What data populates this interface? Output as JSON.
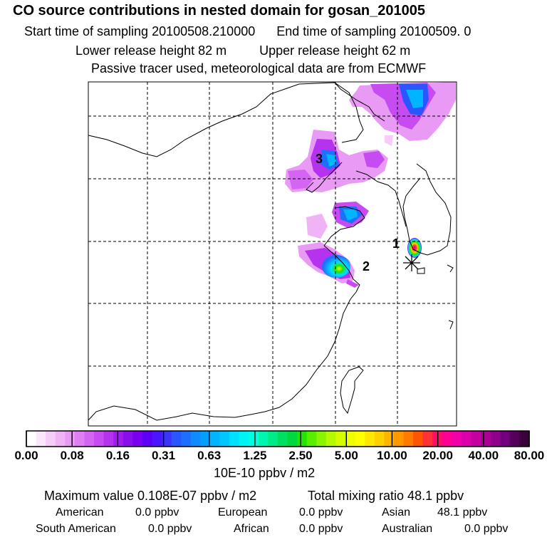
{
  "header": {
    "title": "CO  source contributions in nested domain for gosan_201005",
    "start_label": "Start time of sampling 20100508.210000",
    "end_label": "End time of sampling 20100509.     0",
    "lower_height": "Lower release height   82 m",
    "upper_height": "Upper release height   62 m",
    "tracer_note": "Passive tracer used, meteorological data are from ECMWF"
  },
  "chart_data": {
    "type": "heatmap",
    "title": "CO  source contributions in nested domain for gosan_201005",
    "colorbar": {
      "unit": "10E-10 ppbv / m2",
      "tick_labels": [
        "0.00",
        "0.08",
        "0.16",
        "0.31",
        "0.63",
        "1.25",
        "2.50",
        "5.00",
        "10.00",
        "20.00",
        "40.00",
        "80.00"
      ],
      "colors": [
        "#ffffff",
        "#fbe6fb",
        "#f6ccf8",
        "#f0b3f6",
        "#e99af5",
        "#df7ff4",
        "#d465f2",
        "#c64bf0",
        "#b532ee",
        "#a11ded",
        "#880eec",
        "#7a00f0",
        "#5e00f5",
        "#4a16ff",
        "#3a34ff",
        "#2a55ff",
        "#1e6fff",
        "#0f8bff",
        "#00a0ff",
        "#00b4ff",
        "#00c8ff",
        "#00e0ff",
        "#00f2f2",
        "#00ffde",
        "#00f5b0",
        "#00eb88",
        "#00e060",
        "#00d840",
        "#21e400",
        "#59ee00",
        "#8af500",
        "#b4fa00",
        "#d6fd00",
        "#f0ff00",
        "#ffff00",
        "#ffe800",
        "#ffd000",
        "#ffb400",
        "#ff9800",
        "#ff7a00",
        "#ff5400",
        "#ff3038",
        "#ff0f6a",
        "#ff0094",
        "#f000a8",
        "#dc00aa",
        "#c400a0",
        "#ac0096",
        "#90008a",
        "#72007c",
        "#54005c",
        "#3c003c"
      ]
    },
    "sources": [
      {
        "label": "1",
        "level": "20.00-80.00"
      },
      {
        "label": "2",
        "level": "5.00-10.00"
      },
      {
        "label": "3",
        "level": "0.63-1.25"
      }
    ],
    "receptor_marker": "gosan (asterisk)"
  },
  "stats": {
    "max_value": "Maximum value  0.108E-07 ppbv / m2",
    "total_mixing": "Total mixing ratio       48.1 ppbv",
    "regions": [
      {
        "name": "American",
        "value": "0.0 ppbv"
      },
      {
        "name": "European",
        "value": "0.0 ppbv"
      },
      {
        "name": "Asian",
        "value": "48.1 ppbv"
      },
      {
        "name": "South American",
        "value": "0.0 ppbv"
      },
      {
        "name": "African",
        "value": "0.0 ppbv"
      },
      {
        "name": "Australian",
        "value": "0.0 ppbv"
      }
    ]
  },
  "colors": {
    "frame": "#000000",
    "coast": "#000000"
  }
}
